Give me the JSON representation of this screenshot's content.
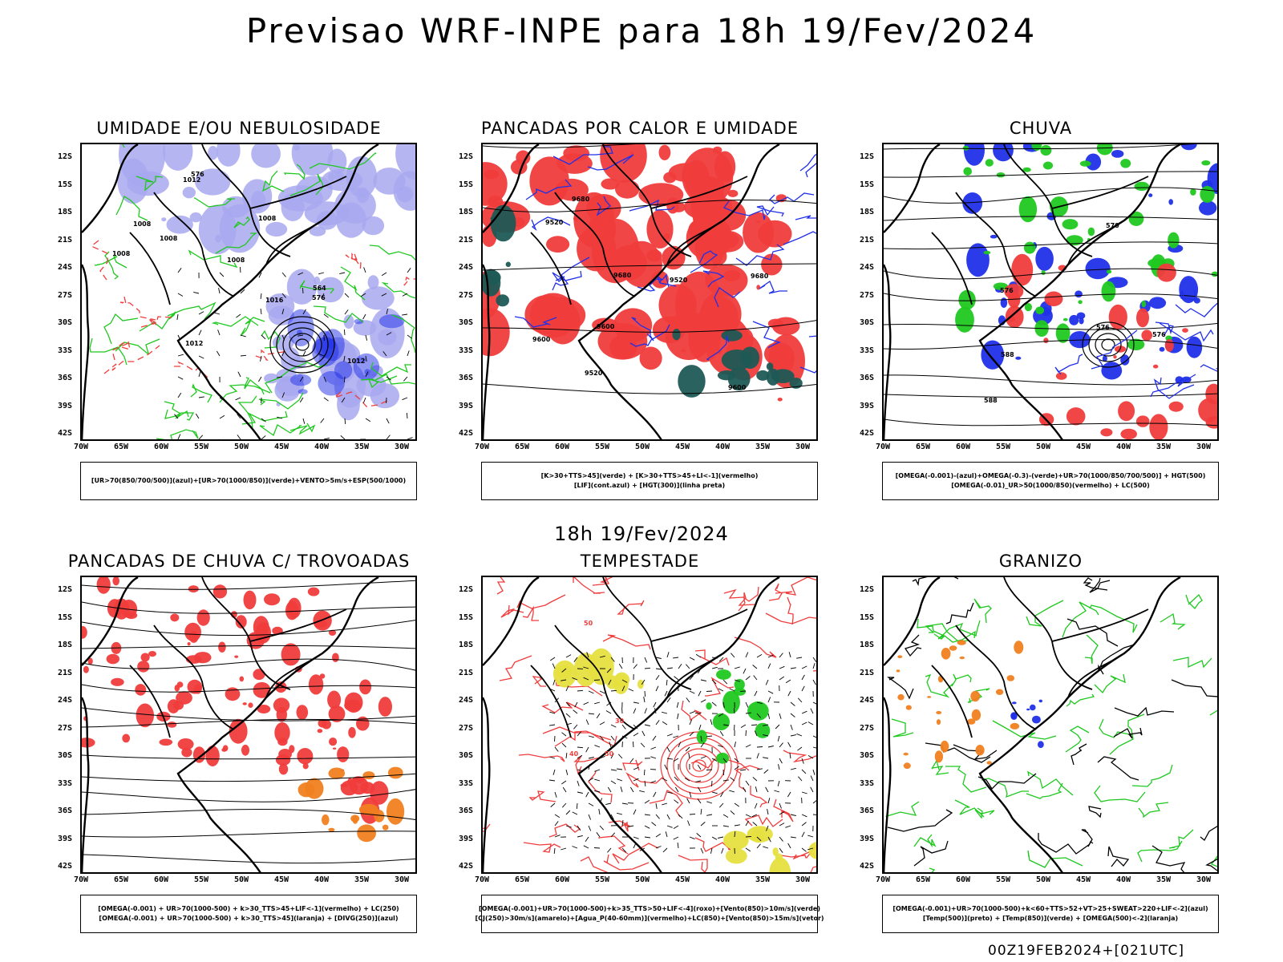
{
  "title": "Previsao WRF-INPE  para 18h 19/Fev/2024",
  "subtitle": "18h 19/Fev/2024",
  "footer": "00Z19FEB2024+[021UTC]",
  "axes": {
    "lat": [
      "12S",
      "15S",
      "18S",
      "21S",
      "24S",
      "27S",
      "30S",
      "33S",
      "36S",
      "39S",
      "42S"
    ],
    "lon": [
      "70W",
      "65W",
      "60W",
      "55W",
      "50W",
      "45W",
      "40W",
      "35W",
      "30W"
    ]
  },
  "colors": {
    "green": "#1fc81f",
    "red": "#f03c3c",
    "blue": "#2030e8",
    "lightblue": "#a8a8f0",
    "darkteal": "#1e5a55",
    "orange": "#f08020",
    "yellow": "#e6e040"
  },
  "panels": [
    {
      "title": "UMIDADE E/OU NEBULOSIDADE",
      "legend": [
        "[UR>70(850/700/500)](azul)+[UR>70(1000/850)](verde)+VENTO>5m/s+ESP(500/1000)"
      ],
      "labels": [
        "1008",
        "1008",
        "1008",
        "1012",
        "1012",
        "1008",
        "1008",
        "1016",
        "1012",
        "576",
        "576",
        "564"
      ]
    },
    {
      "title": "PANCADAS POR CALOR E UMIDADE",
      "legend": [
        "[K>30+TTS>45](verde) + [K>30+TTS>45+LI<-1](vermelho)",
        "[LIF](cont.azul) + [HGT(300)](linha preta)"
      ],
      "labels": [
        "9680",
        "9680",
        "9680",
        "9600",
        "9600",
        "9520",
        "9520",
        "9520",
        "9600"
      ]
    },
    {
      "title": "CHUVA",
      "legend": [
        "[OMEGA(-0.001)-(azul)+OMEGA(-0.3)-(verde)+UR>70(1000/850/700/500)] + HGT(500)",
        "[OMEGA(-0.01)_UR>50(1000/850)(vermelho) + LC(500)"
      ],
      "labels": [
        "588",
        "576",
        "576",
        "588",
        "576",
        "570"
      ]
    },
    {
      "title": "PANCADAS DE CHUVA C/ TROVOADAS",
      "legend": [
        "[OMEGA(-0.001) + UR>70(1000-500) + k>30_TTS>45+LIF<-1](vermelho) + LC(250)",
        "[OMEGA(-0.001) + UR>70(1000-500) + k>30_TTS>45](laranja) + [DIVG(250)](azul)"
      ],
      "labels": []
    },
    {
      "title": "TEMPESTADE",
      "legend": [
        "[OMEGA(-0.001)+UR>70(1000-500)+k>35_TTS>50+LIF<-4](roxo)+[Vento(850)>10m/s](verde)",
        "[CJ(250)>30m/s](amarelo)+[Agua_P(40-60mm)](vermelho)+LC(850)+[Vento(850)>15m/s](vetor)"
      ],
      "labels": [
        "50",
        "50",
        "40",
        "30"
      ]
    },
    {
      "title": "GRANIZO",
      "legend": [
        "[OMEGA(-0.001)+UR>70(1000-500)+k<60+TTS>52+VT>25+SWEAT>220+LIF<-2](azul)",
        "[Temp(500)](preto) + [Temp(850)](verde) + [OMEGA(500)<-2](laranja)"
      ],
      "labels": []
    }
  ]
}
